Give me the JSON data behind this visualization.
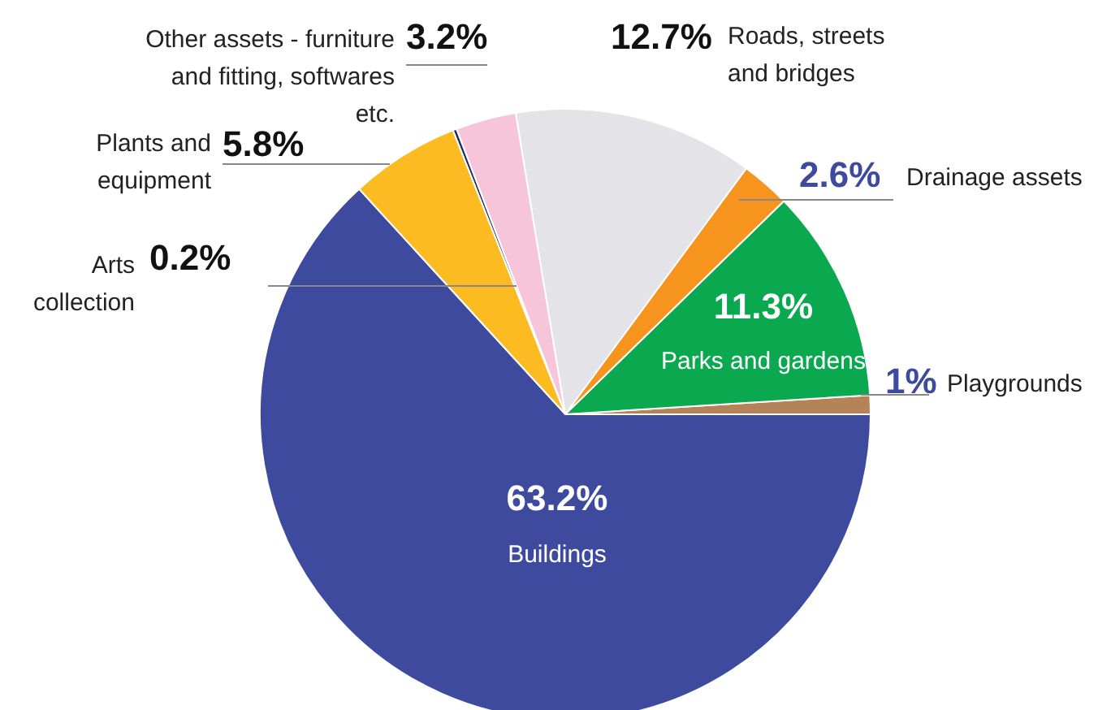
{
  "chart_data": {
    "type": "pie",
    "categories": [
      "Playgrounds",
      "Parks and gardens",
      "Drainage assets",
      "Roads, streets and bridges",
      "Other assets - furniture and fitting, softwares etc.",
      "Arts collection",
      "Plants and equipment",
      "Buildings"
    ],
    "values": [
      1,
      11.3,
      2.6,
      12.7,
      3.2,
      0.2,
      5.8,
      63.2
    ],
    "colors": [
      "#b5835a",
      "#0aa84f",
      "#f7941d",
      "#e3e3e8",
      "#f6c5d9",
      "#1c2a66",
      "#fbbb21",
      "#3d4a9e"
    ],
    "value_labels": [
      "1%",
      "11.3%",
      "2.6%",
      "12.7%",
      "3.2%",
      "0.2%",
      "5.8%",
      "63.2%"
    ]
  }
}
